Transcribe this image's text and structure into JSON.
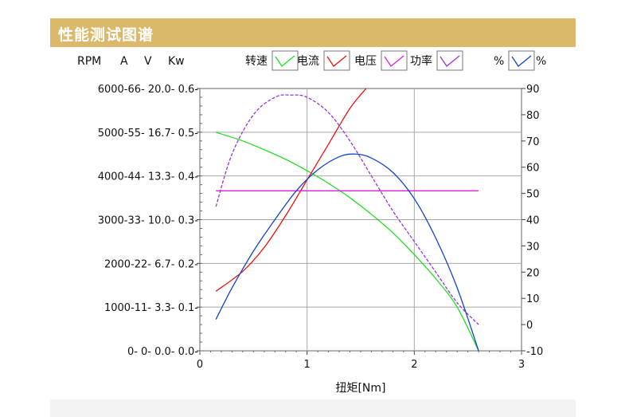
{
  "header": {
    "title": "性能测试图谱"
  },
  "chart_data": {
    "type": "line",
    "xlabel": "扭矩[Nm]",
    "xlim": [
      0,
      3
    ],
    "x_ticks": [
      "0",
      "1",
      "2",
      "3"
    ],
    "grid": true,
    "legend_position": "top",
    "left_axes_header": [
      "RPM",
      "A",
      "V",
      "Kw"
    ],
    "left_tick_labels": [
      "6000-66- 20.0- 0.6-",
      "5000-55- 16.7- 0.5-",
      "4000-44- 13.3- 0.4-",
      "3000-33- 10.0- 0.3-",
      "2000-22-   6.7- 0.2-",
      "1000-11-   3.3- 0.1-",
      "0-  0-   0.0- 0.0-"
    ],
    "axes": {
      "RPM": {
        "range": [
          0,
          6000
        ]
      },
      "A": {
        "range": [
          0,
          66
        ]
      },
      "V": {
        "range": [
          0,
          20
        ]
      },
      "Kw": {
        "range": [
          0,
          0.6
        ]
      },
      "%": {
        "range": [
          -10,
          90
        ]
      }
    },
    "right_ticks": [
      "90",
      "80",
      "70",
      "60",
      "50",
      "40",
      "30",
      "20",
      "10",
      "0",
      "-10"
    ],
    "right_axis_header": "%",
    "series": [
      {
        "name": "转速",
        "axis": "RPM",
        "color": "#22dd22",
        "dashed": false,
        "x": [
          0.15,
          0.4,
          0.6,
          0.8,
          1.0,
          1.2,
          1.4,
          1.6,
          1.8,
          2.0,
          2.2,
          2.4,
          2.6
        ],
        "y": [
          5000,
          4800,
          4600,
          4380,
          4120,
          3830,
          3500,
          3120,
          2700,
          2200,
          1650,
          1000,
          0
        ]
      },
      {
        "name": "电流",
        "axis": "A",
        "color": "#ee1111",
        "dashed": false,
        "x": [
          0.15,
          0.4,
          0.6,
          0.8,
          1.0,
          1.2,
          1.4,
          1.55
        ],
        "y": [
          15,
          20,
          26,
          34,
          43,
          52,
          61,
          66
        ]
      },
      {
        "name": "电压",
        "axis": "V",
        "color": "#dd22dd",
        "dashed": false,
        "x": [
          0.15,
          2.6
        ],
        "y": [
          12.2,
          12.2
        ]
      },
      {
        "name": "功率",
        "axis": "Kw",
        "color": "#9933dd",
        "dashed": true,
        "x": [
          0.15,
          0.3,
          0.5,
          0.7,
          0.85,
          1.0,
          1.2,
          1.4,
          1.6,
          1.8,
          2.0,
          2.2,
          2.4,
          2.6
        ],
        "y": [
          0.33,
          0.45,
          0.54,
          0.58,
          0.585,
          0.58,
          0.545,
          0.48,
          0.4,
          0.32,
          0.25,
          0.18,
          0.11,
          0.06
        ]
      },
      {
        "name": "%",
        "axis": "%",
        "color": "#1144cc",
        "dashed": false,
        "x": [
          0.15,
          0.3,
          0.5,
          0.7,
          0.9,
          1.1,
          1.3,
          1.45,
          1.6,
          1.8,
          2.0,
          2.2,
          2.4,
          2.6
        ],
        "y": [
          2,
          14,
          28,
          40,
          51,
          59,
          64,
          65,
          63.5,
          58,
          48,
          33,
          14,
          -10
        ]
      }
    ]
  }
}
